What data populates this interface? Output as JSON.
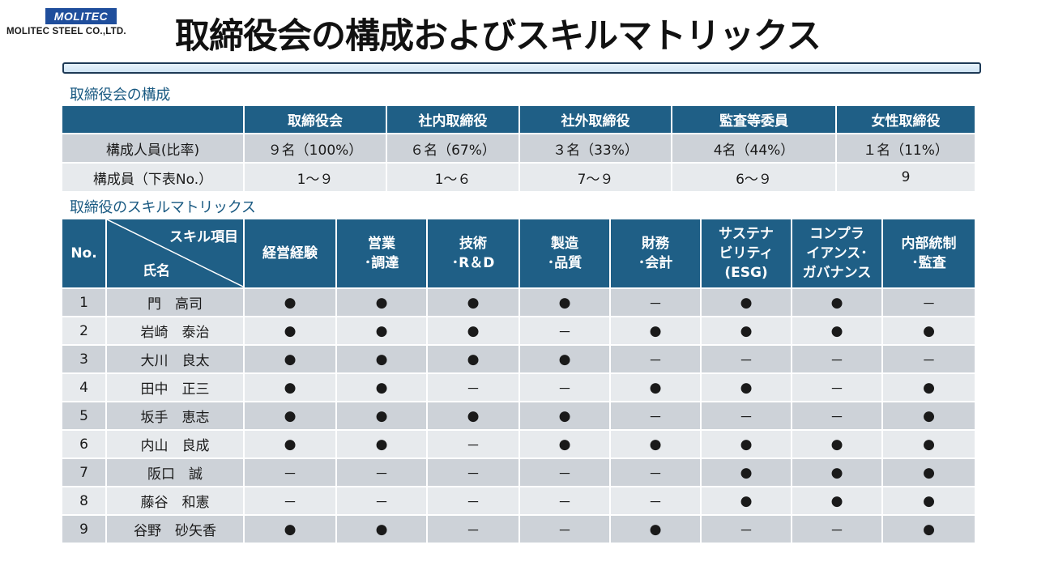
{
  "logo": {
    "mark": "MOLITEC",
    "company": "MOLITEC STEEL CO.,LTD."
  },
  "title": "取締役会の構成およびスキルマトリックス",
  "composition": {
    "heading": "取締役会の構成",
    "columns": [
      "取締役会",
      "社内取締役",
      "社外取締役",
      "監査等委員",
      "女性取締役"
    ],
    "rows": [
      {
        "label": "構成人員(比率)",
        "values": [
          "９名（100%）",
          "６名（67%）",
          "３名（33%）",
          "4名（44%）",
          "１名（11%）"
        ]
      },
      {
        "label": "構成員（下表No.）",
        "values": [
          "1～９",
          "1～６",
          "7～９",
          "6～９",
          "9"
        ]
      }
    ]
  },
  "skills": {
    "heading": "取締役のスキルマトリックス",
    "header": {
      "no": "No.",
      "skill_items": "スキル項目",
      "name": "氏名",
      "columns": [
        [
          "経営経験"
        ],
        [
          "営業",
          "･調達"
        ],
        [
          "技術",
          "･R＆D"
        ],
        [
          "製造",
          "･品質"
        ],
        [
          "財務",
          "･会計"
        ],
        [
          "サステナ",
          "ビリティ",
          "(ESG)"
        ],
        [
          "コンプラ",
          "イアンス･",
          "ガバナンス"
        ],
        [
          "内部統制",
          "･監査"
        ]
      ]
    },
    "rows": [
      {
        "no": "1",
        "name": "門　高司",
        "marks": [
          "●",
          "●",
          "●",
          "●",
          "－",
          "●",
          "●",
          "－"
        ]
      },
      {
        "no": "2",
        "name": "岩崎　泰治",
        "marks": [
          "●",
          "●",
          "●",
          "－",
          "●",
          "●",
          "●",
          "●"
        ]
      },
      {
        "no": "3",
        "name": "大川　良太",
        "marks": [
          "●",
          "●",
          "●",
          "●",
          "－",
          "－",
          "－",
          "－"
        ]
      },
      {
        "no": "4",
        "name": "田中　正三",
        "marks": [
          "●",
          "●",
          "－",
          "－",
          "●",
          "●",
          "－",
          "●"
        ]
      },
      {
        "no": "5",
        "name": "坂手　恵志",
        "marks": [
          "●",
          "●",
          "●",
          "●",
          "－",
          "－",
          "－",
          "●"
        ]
      },
      {
        "no": "6",
        "name": "内山　良成",
        "marks": [
          "●",
          "●",
          "－",
          "●",
          "●",
          "●",
          "●",
          "●"
        ]
      },
      {
        "no": "7",
        "name": "阪口　誠",
        "marks": [
          "－",
          "－",
          "－",
          "－",
          "－",
          "●",
          "●",
          "●"
        ]
      },
      {
        "no": "8",
        "name": "藤谷　和憲",
        "marks": [
          "－",
          "－",
          "－",
          "－",
          "－",
          "●",
          "●",
          "●"
        ]
      },
      {
        "no": "9",
        "name": "谷野　砂矢香",
        "marks": [
          "●",
          "●",
          "－",
          "－",
          "●",
          "－",
          "－",
          "●"
        ]
      }
    ]
  },
  "colors": {
    "header_bg": "#1f5f86",
    "row_dark": "#cdd2d8",
    "row_light": "#e7eaed",
    "heading_text": "#1a5a82",
    "logo_bg": "#1f4e9c"
  }
}
